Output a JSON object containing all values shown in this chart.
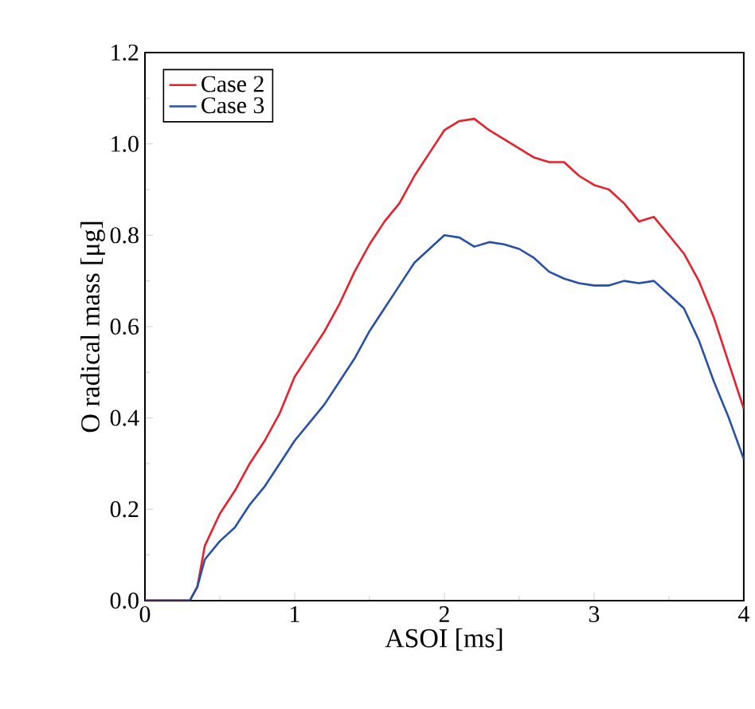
{
  "chart_data": {
    "type": "line",
    "xlabel": "ASOI [ms]",
    "ylabel": "O radical mass [μg]",
    "xlim": [
      0,
      4
    ],
    "ylim": [
      0,
      1.2
    ],
    "xticks": [
      0,
      1,
      2,
      3,
      4
    ],
    "yticks": [
      {
        "value": 0,
        "label": "0.0"
      },
      {
        "value": 0.2,
        "label": "0.2"
      },
      {
        "value": 0.4,
        "label": "0.4"
      },
      {
        "value": 0.6,
        "label": "0.6"
      },
      {
        "value": 0.8,
        "label": "0.8"
      },
      {
        "value": 1.0,
        "label": "1.0"
      },
      {
        "value": 1.2,
        "label": "1.2"
      }
    ],
    "grid": false,
    "legend": "top left",
    "line_style": "solid",
    "x": [
      0,
      0.3,
      0.35,
      0.4,
      0.5,
      0.6,
      0.7,
      0.8,
      0.9,
      1.0,
      1.1,
      1.2,
      1.3,
      1.4,
      1.5,
      1.6,
      1.7,
      1.8,
      1.9,
      2.0,
      2.1,
      2.2,
      2.3,
      2.4,
      2.5,
      2.6,
      2.7,
      2.8,
      2.9,
      3.0,
      3.1,
      3.2,
      3.3,
      3.4,
      3.5,
      3.6,
      3.7,
      3.8,
      3.9,
      4.0
    ],
    "series": [
      {
        "name": "Case 2",
        "color": "#e8202e",
        "values": [
          0,
          0,
          0.03,
          0.12,
          0.19,
          0.24,
          0.3,
          0.35,
          0.41,
          0.49,
          0.54,
          0.59,
          0.65,
          0.72,
          0.78,
          0.83,
          0.87,
          0.93,
          0.98,
          1.03,
          1.05,
          1.055,
          1.03,
          1.01,
          0.99,
          0.97,
          0.96,
          0.96,
          0.93,
          0.91,
          0.9,
          0.87,
          0.83,
          0.84,
          0.8,
          0.76,
          0.7,
          0.62,
          0.52,
          0.42
        ]
      },
      {
        "name": "Case 3",
        "color": "#2850a8",
        "values": [
          0,
          0,
          0.03,
          0.09,
          0.13,
          0.16,
          0.21,
          0.25,
          0.3,
          0.35,
          0.39,
          0.43,
          0.48,
          0.53,
          0.59,
          0.64,
          0.69,
          0.74,
          0.77,
          0.8,
          0.795,
          0.775,
          0.785,
          0.78,
          0.77,
          0.75,
          0.72,
          0.705,
          0.695,
          0.69,
          0.69,
          0.7,
          0.695,
          0.7,
          0.67,
          0.64,
          0.57,
          0.48,
          0.4,
          0.31
        ]
      }
    ]
  }
}
